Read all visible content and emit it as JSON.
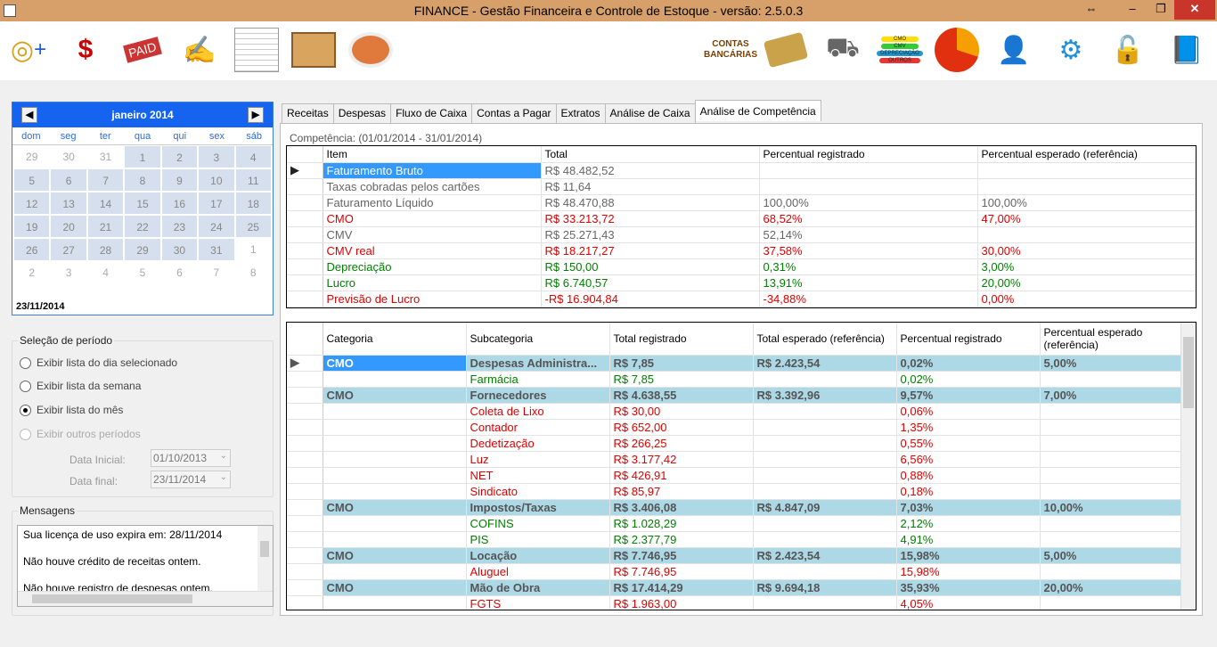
{
  "window": {
    "title": "FINANCE - Gestão Financeira e Controle de Estoque - versão: 2.5.0.3"
  },
  "toolbar": {
    "contas_label": "CONTAS BANCÁRIAS",
    "cmv_chip_labels": [
      "CMO",
      "CMV",
      "DEPRECIAÇÃO",
      "OUTROS"
    ]
  },
  "calendar": {
    "month_label": "janeiro 2014",
    "weekdays": [
      "dom",
      "seg",
      "ter",
      "qua",
      "qui",
      "sex",
      "sáb"
    ],
    "days": [
      "29",
      "30",
      "31",
      "1",
      "2",
      "3",
      "4",
      "5",
      "6",
      "7",
      "8",
      "9",
      "10",
      "11",
      "12",
      "13",
      "14",
      "15",
      "16",
      "17",
      "18",
      "19",
      "20",
      "21",
      "22",
      "23",
      "24",
      "25",
      "26",
      "27",
      "28",
      "29",
      "30",
      "31",
      "1",
      "2",
      "3",
      "4",
      "5",
      "6",
      "7",
      "8"
    ],
    "today": "23/11/2014"
  },
  "period": {
    "title": "Seleção de período",
    "options": [
      "Exibir lista do dia selecionado",
      "Exibir lista da semana",
      "Exibir lista do mês",
      "Exibir outros períodos"
    ],
    "selected": "Exibir lista do mês",
    "start_label": "Data Inicial:",
    "start_value": "01/10/2013",
    "end_label": "Data final:",
    "end_value": "23/11/2014"
  },
  "messages": {
    "title": "Mensagens",
    "items": [
      "Sua licença de uso expira em: 28/11/2014",
      "Não houve crédito de receitas ontem.",
      "Não houve registro de despesas ontem."
    ]
  },
  "tabs": [
    "Receitas",
    "Despesas",
    "Fluxo de Caixa",
    "Contas a Pagar",
    "Extratos",
    "Análise de Caixa",
    "Análise de Competência"
  ],
  "active_tab": "Análise de Competência",
  "competencia": "Competência: (01/01/2014 - 31/01/2014)",
  "summary": {
    "headers": [
      "Item",
      "Total",
      "Percentual registrado",
      "Percentual esperado (referência)"
    ],
    "rows": [
      {
        "item": "Faturamento Bruto",
        "total": "R$ 48.482,52",
        "reg": "",
        "esp": "",
        "color": "gray"
      },
      {
        "item": "Taxas cobradas pelos cartões",
        "total": "R$ 11,64",
        "reg": "",
        "esp": "",
        "color": "gray"
      },
      {
        "item": "Faturamento Líquido",
        "total": "R$ 48.470,88",
        "reg": "100,00%",
        "esp": "100,00%",
        "color": "gray"
      },
      {
        "item": "CMO",
        "total": "R$ 33.213,72",
        "reg": "68,52%",
        "esp": "47,00%",
        "color": "red"
      },
      {
        "item": "CMV",
        "total": "R$ 25.271,43",
        "reg": "52,14%",
        "esp": "",
        "color": "gray"
      },
      {
        "item": "CMV real",
        "total": "R$ 18.217,27",
        "reg": "37,58%",
        "esp": "30,00%",
        "color": "red"
      },
      {
        "item": "Depreciação",
        "total": "R$ 150,00",
        "reg": "0,31%",
        "esp": "3,00%",
        "color": "green"
      },
      {
        "item": "Lucro",
        "total": "R$ 6.740,57",
        "reg": "13,91%",
        "esp": "20,00%",
        "color": "green"
      },
      {
        "item": "Previsão de Lucro",
        "total": "-R$ 16.904,84",
        "reg": "-34,88%",
        "esp": "0,00%",
        "color": "red"
      }
    ]
  },
  "detail": {
    "headers": [
      "Categoria",
      "Subcategoria",
      "Total registrado",
      "Total esperado (referência)",
      "Percentual registrado",
      "Percentual esperado (referência)"
    ],
    "rows": [
      {
        "type": "cat",
        "cat": "CMO",
        "sub": "Despesas Administra...",
        "total": "R$ 7,85",
        "esp": "R$ 2.423,54",
        "reg": "0,02%",
        "pesp": "5,00%"
      },
      {
        "type": "sub",
        "cat": "",
        "sub": "Farmácia",
        "total": "R$ 7,85",
        "esp": "",
        "reg": "0,02%",
        "pesp": "",
        "color": "green"
      },
      {
        "type": "cat",
        "cat": "CMO",
        "sub": "Fornecedores",
        "total": "R$ 4.638,55",
        "esp": "R$ 3.392,96",
        "reg": "9,57%",
        "pesp": "7,00%"
      },
      {
        "type": "sub",
        "cat": "",
        "sub": "Coleta de Lixo",
        "total": "R$ 30,00",
        "esp": "",
        "reg": "0,06%",
        "pesp": "",
        "color": "red"
      },
      {
        "type": "sub",
        "cat": "",
        "sub": "Contador",
        "total": "R$ 652,00",
        "esp": "",
        "reg": "1,35%",
        "pesp": "",
        "color": "red"
      },
      {
        "type": "sub",
        "cat": "",
        "sub": "Dedetização",
        "total": "R$ 266,25",
        "esp": "",
        "reg": "0,55%",
        "pesp": "",
        "color": "red"
      },
      {
        "type": "sub",
        "cat": "",
        "sub": "Luz",
        "total": "R$ 3.177,42",
        "esp": "",
        "reg": "6,56%",
        "pesp": "",
        "color": "red"
      },
      {
        "type": "sub",
        "cat": "",
        "sub": "NET",
        "total": "R$ 426,91",
        "esp": "",
        "reg": "0,88%",
        "pesp": "",
        "color": "red"
      },
      {
        "type": "sub",
        "cat": "",
        "sub": "Sindicato",
        "total": "R$ 85,97",
        "esp": "",
        "reg": "0,18%",
        "pesp": "",
        "color": "red"
      },
      {
        "type": "cat",
        "cat": "CMO",
        "sub": "Impostos/Taxas",
        "total": "R$ 3.406,08",
        "esp": "R$ 4.847,09",
        "reg": "7,03%",
        "pesp": "10,00%"
      },
      {
        "type": "sub",
        "cat": "",
        "sub": "COFINS",
        "total": "R$ 1.028,29",
        "esp": "",
        "reg": "2,12%",
        "pesp": "",
        "color": "green"
      },
      {
        "type": "sub",
        "cat": "",
        "sub": "PIS",
        "total": "R$ 2.377,79",
        "esp": "",
        "reg": "4,91%",
        "pesp": "",
        "color": "green"
      },
      {
        "type": "cat",
        "cat": "CMO",
        "sub": "Locação",
        "total": "R$ 7.746,95",
        "esp": "R$ 2.423,54",
        "reg": "15,98%",
        "pesp": "5,00%"
      },
      {
        "type": "sub",
        "cat": "",
        "sub": "Aluguel",
        "total": "R$ 7.746,95",
        "esp": "",
        "reg": "15,98%",
        "pesp": "",
        "color": "red"
      },
      {
        "type": "cat",
        "cat": "CMO",
        "sub": "Mão de Obra",
        "total": "R$ 17.414,29",
        "esp": "R$ 9.694,18",
        "reg": "35,93%",
        "pesp": "20,00%"
      },
      {
        "type": "sub",
        "cat": "",
        "sub": "FGTS",
        "total": "R$ 1.963,00",
        "esp": "",
        "reg": "4,05%",
        "pesp": "",
        "color": "red"
      }
    ]
  }
}
